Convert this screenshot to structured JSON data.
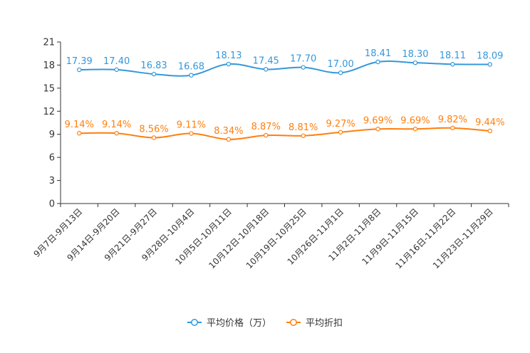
{
  "chart_data": {
    "type": "line",
    "categories": [
      "9月7日-9月13日",
      "9月14日-9月20日",
      "9月21日-9月27日",
      "9月28日-10月4日",
      "10月5日-10月11日",
      "10月12日-10月18日",
      "10月19日-10月25日",
      "10月26日-11月1日",
      "11月2日-11月8日",
      "11月9日-11月15日",
      "11月16日-11月22日",
      "11月23日-11月29日"
    ],
    "ylim": [
      0,
      21
    ],
    "yticks": [
      "0",
      "3",
      "6",
      "9",
      "12",
      "15",
      "18",
      "21"
    ],
    "series": [
      {
        "name": "平均价格（万）",
        "color": "#3398DB",
        "values": [
          17.39,
          17.4,
          16.83,
          16.68,
          18.13,
          17.45,
          17.7,
          17.0,
          18.41,
          18.3,
          18.11,
          18.09
        ],
        "labels": [
          "17.39",
          "17.40",
          "16.83",
          "16.68",
          "18.13",
          "17.45",
          "17.70",
          "17.00",
          "18.41",
          "18.30",
          "18.11",
          "18.09"
        ]
      },
      {
        "name": "平均折扣",
        "color": "#FF7F0E",
        "values": [
          9.14,
          9.14,
          8.56,
          9.11,
          8.34,
          8.87,
          8.81,
          9.27,
          9.69,
          9.69,
          9.82,
          9.44
        ],
        "labels": [
          "9.14%",
          "9.14%",
          "8.56%",
          "9.11%",
          "8.34%",
          "8.87%",
          "8.81%",
          "9.27%",
          "9.69%",
          "9.69%",
          "9.82%",
          "9.44%"
        ]
      }
    ]
  }
}
